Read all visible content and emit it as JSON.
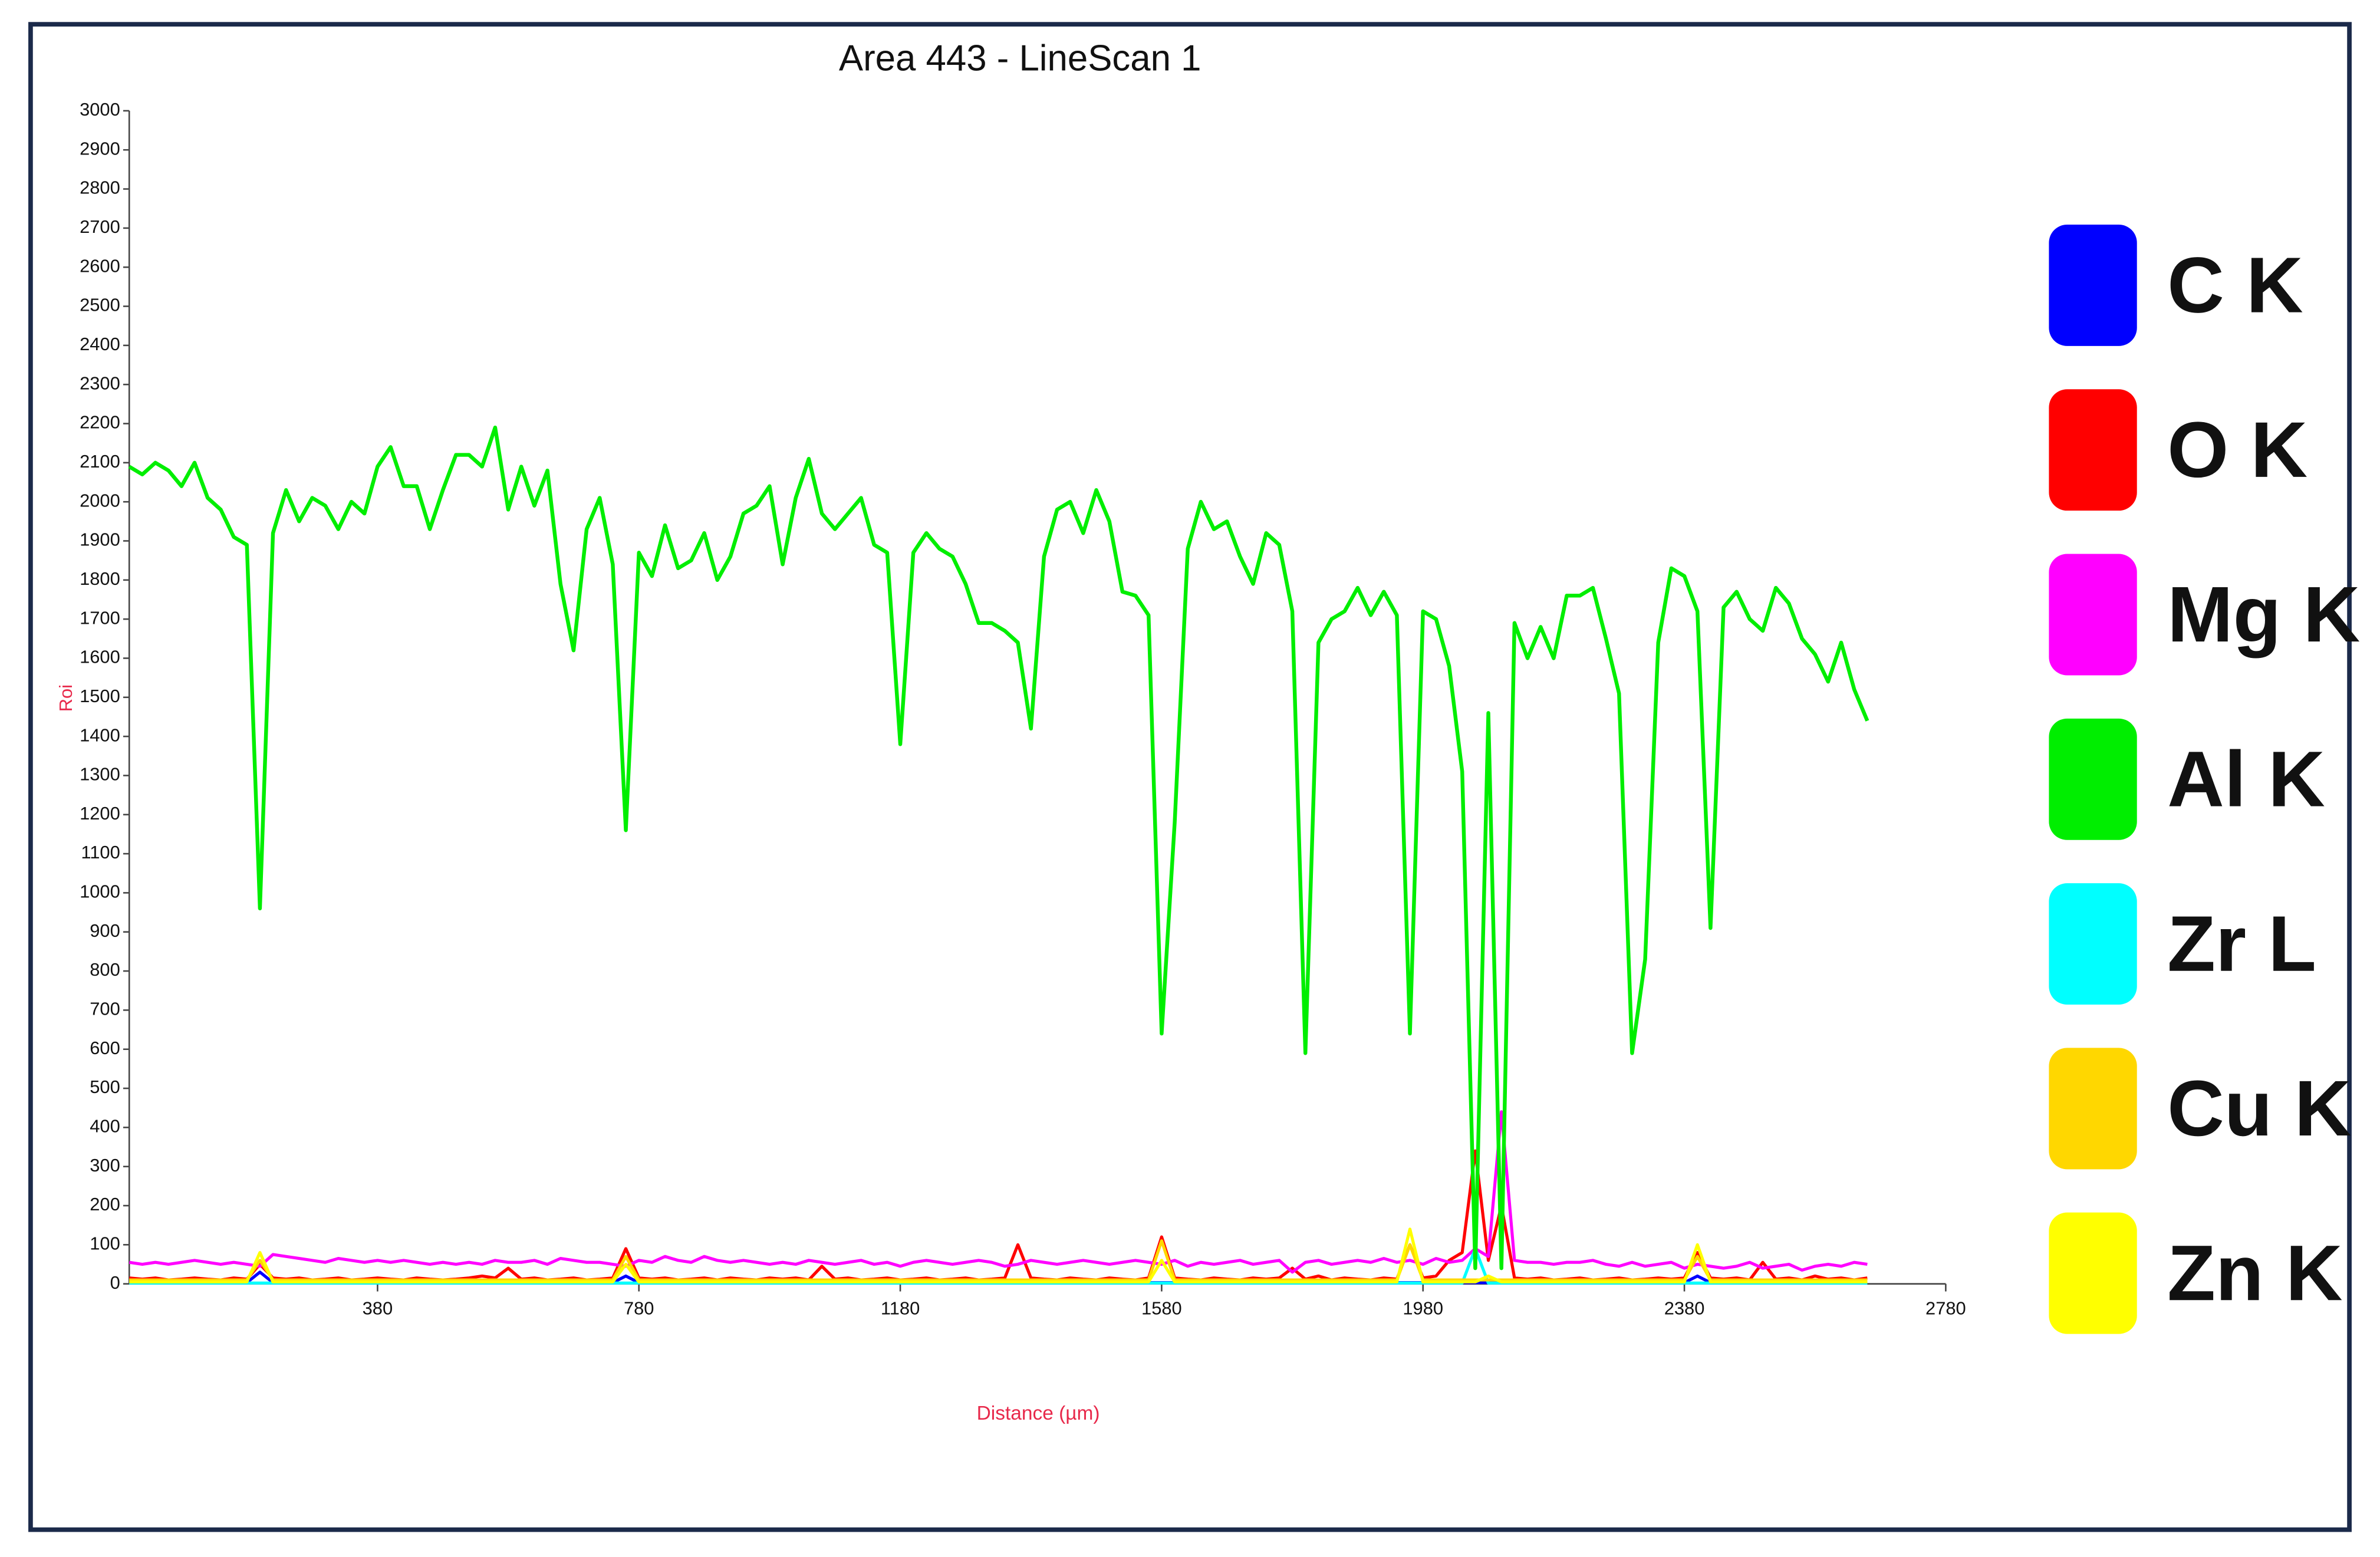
{
  "chart_data": {
    "type": "line",
    "title": "Area 443 - LineScan 1",
    "x_label": "Distance (µm)",
    "y_label": "Roi",
    "xlim": [
      0,
      2780
    ],
    "xticks": [
      380,
      780,
      1180,
      1580,
      1980,
      2380,
      2780
    ],
    "ylim": [
      0,
      3000
    ],
    "yticks": [
      0,
      100,
      200,
      300,
      400,
      500,
      600,
      700,
      800,
      900,
      1000,
      1100,
      1200,
      1300,
      1400,
      1500,
      1600,
      1700,
      1800,
      1900,
      2000,
      2100,
      2200,
      2300,
      2400,
      2500,
      2600,
      2700,
      2800,
      2900,
      3000
    ],
    "x": [
      0,
      20,
      40,
      60,
      80,
      100,
      120,
      140,
      160,
      180,
      200,
      220,
      240,
      260,
      280,
      300,
      320,
      340,
      360,
      380,
      400,
      420,
      440,
      460,
      480,
      500,
      520,
      540,
      560,
      580,
      600,
      620,
      640,
      660,
      680,
      700,
      720,
      740,
      760,
      780,
      800,
      820,
      840,
      860,
      880,
      900,
      920,
      940,
      960,
      980,
      1000,
      1020,
      1040,
      1060,
      1080,
      1100,
      1120,
      1140,
      1160,
      1180,
      1200,
      1220,
      1240,
      1260,
      1280,
      1300,
      1320,
      1340,
      1360,
      1380,
      1400,
      1420,
      1440,
      1460,
      1480,
      1500,
      1520,
      1540,
      1560,
      1580,
      1600,
      1620,
      1640,
      1660,
      1680,
      1700,
      1720,
      1740,
      1760,
      1780,
      1800,
      1820,
      1840,
      1860,
      1880,
      1900,
      1920,
      1940,
      1960,
      1980,
      2000,
      2020,
      2040,
      2060,
      2080,
      2100,
      2120,
      2140,
      2160,
      2180,
      2200,
      2220,
      2240,
      2260,
      2280,
      2300,
      2320,
      2340,
      2360,
      2380,
      2400,
      2420,
      2440,
      2460,
      2480,
      2500,
      2520,
      2540,
      2560,
      2580,
      2600,
      2620,
      2640,
      2660
    ],
    "series": [
      {
        "name": "C K",
        "color": "#0000ff",
        "values": [
          3,
          3,
          3,
          3,
          3,
          3,
          3,
          3,
          3,
          3,
          30,
          3,
          3,
          3,
          3,
          3,
          3,
          3,
          3,
          3,
          3,
          3,
          3,
          3,
          3,
          3,
          3,
          3,
          3,
          3,
          3,
          3,
          3,
          3,
          3,
          3,
          3,
          3,
          20,
          3,
          3,
          3,
          3,
          3,
          3,
          3,
          3,
          3,
          3,
          3,
          3,
          3,
          3,
          3,
          3,
          3,
          3,
          3,
          3,
          3,
          3,
          3,
          3,
          3,
          3,
          3,
          3,
          3,
          3,
          3,
          3,
          3,
          3,
          3,
          3,
          3,
          3,
          3,
          3,
          3,
          3,
          3,
          3,
          3,
          3,
          3,
          3,
          3,
          3,
          3,
          3,
          3,
          3,
          3,
          3,
          3,
          3,
          3,
          3,
          3,
          3,
          3,
          3,
          3,
          3,
          3,
          3,
          3,
          3,
          3,
          3,
          3,
          3,
          3,
          3,
          3,
          3,
          3,
          3,
          3,
          20,
          3,
          3,
          3,
          3,
          3,
          3,
          3,
          3,
          3,
          3,
          3,
          3,
          3
        ]
      },
      {
        "name": "O K",
        "color": "#ff0000",
        "values": [
          15,
          12,
          15,
          10,
          12,
          15,
          12,
          10,
          15,
          12,
          50,
          15,
          12,
          15,
          10,
          12,
          15,
          10,
          12,
          15,
          12,
          10,
          15,
          12,
          10,
          12,
          15,
          20,
          15,
          40,
          12,
          15,
          10,
          12,
          15,
          10,
          12,
          15,
          90,
          15,
          12,
          15,
          10,
          12,
          15,
          10,
          15,
          12,
          10,
          15,
          12,
          15,
          10,
          45,
          12,
          15,
          10,
          12,
          15,
          10,
          12,
          15,
          10,
          12,
          15,
          10,
          12,
          15,
          100,
          15,
          12,
          10,
          15,
          12,
          10,
          15,
          12,
          10,
          15,
          120,
          15,
          12,
          10,
          15,
          12,
          10,
          15,
          12,
          15,
          40,
          12,
          20,
          10,
          15,
          12,
          10,
          15,
          12,
          100,
          15,
          20,
          60,
          80,
          340,
          60,
          200,
          15,
          12,
          15,
          10,
          12,
          15,
          10,
          12,
          15,
          10,
          12,
          15,
          12,
          15,
          80,
          15,
          12,
          15,
          10,
          55,
          12,
          15,
          10,
          20,
          12,
          15,
          10,
          15
        ]
      },
      {
        "name": "Mg K",
        "color": "#ff00ff",
        "values": [
          55,
          50,
          55,
          50,
          55,
          60,
          55,
          50,
          55,
          50,
          45,
          75,
          70,
          65,
          60,
          55,
          65,
          60,
          55,
          60,
          55,
          60,
          55,
          50,
          55,
          50,
          55,
          50,
          60,
          55,
          55,
          60,
          50,
          65,
          60,
          55,
          55,
          50,
          45,
          60,
          55,
          70,
          60,
          55,
          70,
          60,
          55,
          60,
          55,
          50,
          55,
          50,
          60,
          55,
          50,
          55,
          60,
          50,
          55,
          45,
          55,
          60,
          55,
          50,
          55,
          60,
          55,
          45,
          50,
          60,
          55,
          50,
          55,
          60,
          55,
          50,
          55,
          60,
          55,
          50,
          60,
          45,
          55,
          50,
          55,
          60,
          50,
          55,
          60,
          30,
          55,
          60,
          50,
          55,
          60,
          55,
          65,
          55,
          60,
          50,
          65,
          55,
          60,
          90,
          70,
          440,
          60,
          55,
          55,
          50,
          55,
          55,
          60,
          50,
          45,
          55,
          45,
          50,
          55,
          40,
          50,
          45,
          40,
          45,
          55,
          40,
          45,
          50,
          35,
          45,
          50,
          45,
          55,
          50
        ]
      },
      {
        "name": "Al K",
        "color": "#00ee00",
        "values": [
          2090,
          2070,
          2100,
          2080,
          2040,
          2100,
          2010,
          1980,
          1910,
          1890,
          960,
          1920,
          2030,
          1950,
          2010,
          1990,
          1930,
          2000,
          1970,
          2090,
          2140,
          2040,
          2040,
          1930,
          2030,
          2120,
          2120,
          2090,
          2190,
          1980,
          2090,
          1990,
          2080,
          1790,
          1620,
          1930,
          2010,
          1840,
          1160,
          1870,
          1810,
          1940,
          1830,
          1850,
          1920,
          1800,
          1860,
          1970,
          1990,
          2040,
          1840,
          2010,
          2110,
          1970,
          1930,
          1970,
          2010,
          1890,
          1870,
          1380,
          1870,
          1920,
          1880,
          1860,
          1790,
          1690,
          1690,
          1670,
          1640,
          1420,
          1860,
          1980,
          2000,
          1920,
          2030,
          1950,
          1770,
          1760,
          1710,
          640,
          1180,
          1880,
          2000,
          1930,
          1950,
          1860,
          1790,
          1920,
          1890,
          1720,
          590,
          1640,
          1700,
          1720,
          1780,
          1710,
          1770,
          1710,
          640,
          1720,
          1700,
          1580,
          1310,
          40,
          1460,
          40,
          1690,
          1600,
          1680,
          1600,
          1760,
          1760,
          1780,
          1650,
          1510,
          590,
          830,
          1640,
          1830,
          1810,
          1720,
          910,
          1730,
          1770,
          1700,
          1670,
          1780,
          1740,
          1650,
          1610,
          1540,
          1640,
          1520,
          1440
        ]
      },
      {
        "name": "Zr L",
        "color": "#00ffff",
        "values": [
          2,
          2,
          2,
          2,
          2,
          2,
          2,
          2,
          2,
          2,
          2,
          2,
          2,
          2,
          2,
          2,
          2,
          2,
          2,
          2,
          2,
          2,
          2,
          2,
          2,
          2,
          2,
          2,
          2,
          2,
          2,
          2,
          2,
          2,
          2,
          2,
          2,
          2,
          2,
          2,
          2,
          2,
          2,
          2,
          2,
          2,
          2,
          2,
          2,
          2,
          2,
          2,
          2,
          2,
          2,
          2,
          2,
          2,
          2,
          2,
          2,
          2,
          2,
          2,
          2,
          2,
          2,
          2,
          2,
          2,
          2,
          2,
          2,
          2,
          2,
          2,
          2,
          2,
          2,
          2,
          2,
          2,
          2,
          2,
          2,
          2,
          2,
          2,
          2,
          2,
          2,
          2,
          2,
          2,
          2,
          2,
          2,
          2,
          2,
          2,
          2,
          2,
          2,
          90,
          2,
          2,
          2,
          2,
          2,
          2,
          2,
          2,
          2,
          2,
          2,
          2,
          2,
          2,
          2,
          2,
          2,
          2,
          2,
          2,
          2,
          2,
          2,
          2,
          2,
          2,
          2,
          2,
          2,
          2
        ]
      },
      {
        "name": "Cu K",
        "color": "#ffd700",
        "values": [
          10,
          10,
          10,
          10,
          10,
          10,
          10,
          10,
          10,
          10,
          60,
          10,
          10,
          10,
          10,
          10,
          10,
          10,
          10,
          10,
          10,
          10,
          10,
          10,
          10,
          10,
          10,
          10,
          10,
          10,
          10,
          10,
          10,
          10,
          10,
          10,
          10,
          10,
          70,
          10,
          10,
          10,
          10,
          10,
          10,
          10,
          10,
          10,
          10,
          10,
          10,
          10,
          10,
          10,
          10,
          10,
          10,
          10,
          10,
          10,
          10,
          10,
          10,
          10,
          10,
          10,
          10,
          10,
          10,
          10,
          10,
          10,
          10,
          10,
          10,
          10,
          10,
          10,
          10,
          110,
          10,
          10,
          10,
          10,
          10,
          10,
          10,
          10,
          10,
          10,
          10,
          10,
          10,
          10,
          10,
          10,
          10,
          10,
          100,
          10,
          10,
          10,
          10,
          10,
          10,
          10,
          10,
          10,
          10,
          10,
          10,
          10,
          10,
          10,
          10,
          10,
          10,
          10,
          10,
          10,
          70,
          10,
          10,
          10,
          10,
          10,
          10,
          10,
          10,
          10,
          10,
          10,
          10,
          10
        ]
      },
      {
        "name": "Zn K",
        "color": "#ffff00",
        "values": [
          5,
          5,
          5,
          5,
          5,
          5,
          5,
          5,
          5,
          5,
          80,
          5,
          5,
          5,
          5,
          5,
          5,
          5,
          5,
          5,
          5,
          5,
          5,
          5,
          5,
          5,
          5,
          5,
          5,
          5,
          5,
          5,
          5,
          5,
          5,
          5,
          5,
          5,
          50,
          5,
          5,
          5,
          5,
          5,
          5,
          5,
          5,
          5,
          5,
          5,
          5,
          5,
          5,
          5,
          5,
          5,
          5,
          5,
          5,
          5,
          5,
          5,
          5,
          5,
          5,
          5,
          5,
          5,
          5,
          5,
          5,
          5,
          5,
          5,
          5,
          5,
          5,
          5,
          5,
          60,
          5,
          5,
          5,
          5,
          5,
          5,
          5,
          5,
          5,
          5,
          5,
          5,
          5,
          5,
          5,
          5,
          5,
          5,
          140,
          5,
          5,
          5,
          5,
          5,
          20,
          5,
          5,
          5,
          5,
          5,
          5,
          5,
          5,
          5,
          5,
          5,
          5,
          5,
          5,
          5,
          100,
          5,
          5,
          5,
          5,
          5,
          5,
          5,
          5,
          5,
          5,
          5,
          5,
          5
        ]
      }
    ]
  }
}
